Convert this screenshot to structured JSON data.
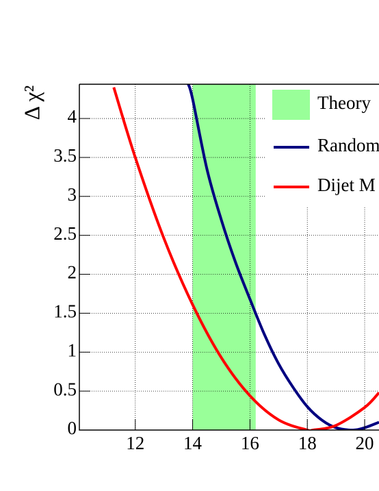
{
  "chart_data": {
    "type": "line",
    "y_label": "Δ χ²",
    "xlim": [
      10.05,
      20.5
    ],
    "ylim": [
      0,
      4.44
    ],
    "xticks": [
      12,
      14,
      16,
      18,
      20
    ],
    "yticks": [
      0,
      0.5,
      1,
      1.5,
      2,
      2.5,
      3,
      3.5,
      4
    ],
    "grid": true,
    "band": {
      "name": "Theory",
      "color": "#99ff99",
      "x": [
        14,
        16.2
      ]
    },
    "series": [
      {
        "name": "Random",
        "color": "#000080",
        "x": [
          13.85,
          14,
          14.5,
          15,
          15.5,
          16,
          16.5,
          17,
          17.5,
          18,
          18.5,
          19,
          19.6,
          20,
          20.5
        ],
        "values": [
          4.44,
          4.25,
          3.35,
          2.7,
          2.15,
          1.68,
          1.23,
          0.85,
          0.55,
          0.3,
          0.13,
          0.03,
          0,
          0.03,
          0.1
        ]
      },
      {
        "name": "Dijet M",
        "color": "#ff0000",
        "x": [
          11.25,
          12,
          13,
          14,
          15,
          16,
          17,
          18,
          18.2,
          19,
          20,
          20.5
        ],
        "values": [
          4.4,
          3.5,
          2.46,
          1.61,
          0.93,
          0.44,
          0.13,
          0.0,
          0,
          0.06,
          0.29,
          0.48
        ]
      }
    ],
    "legend": "top-right"
  }
}
